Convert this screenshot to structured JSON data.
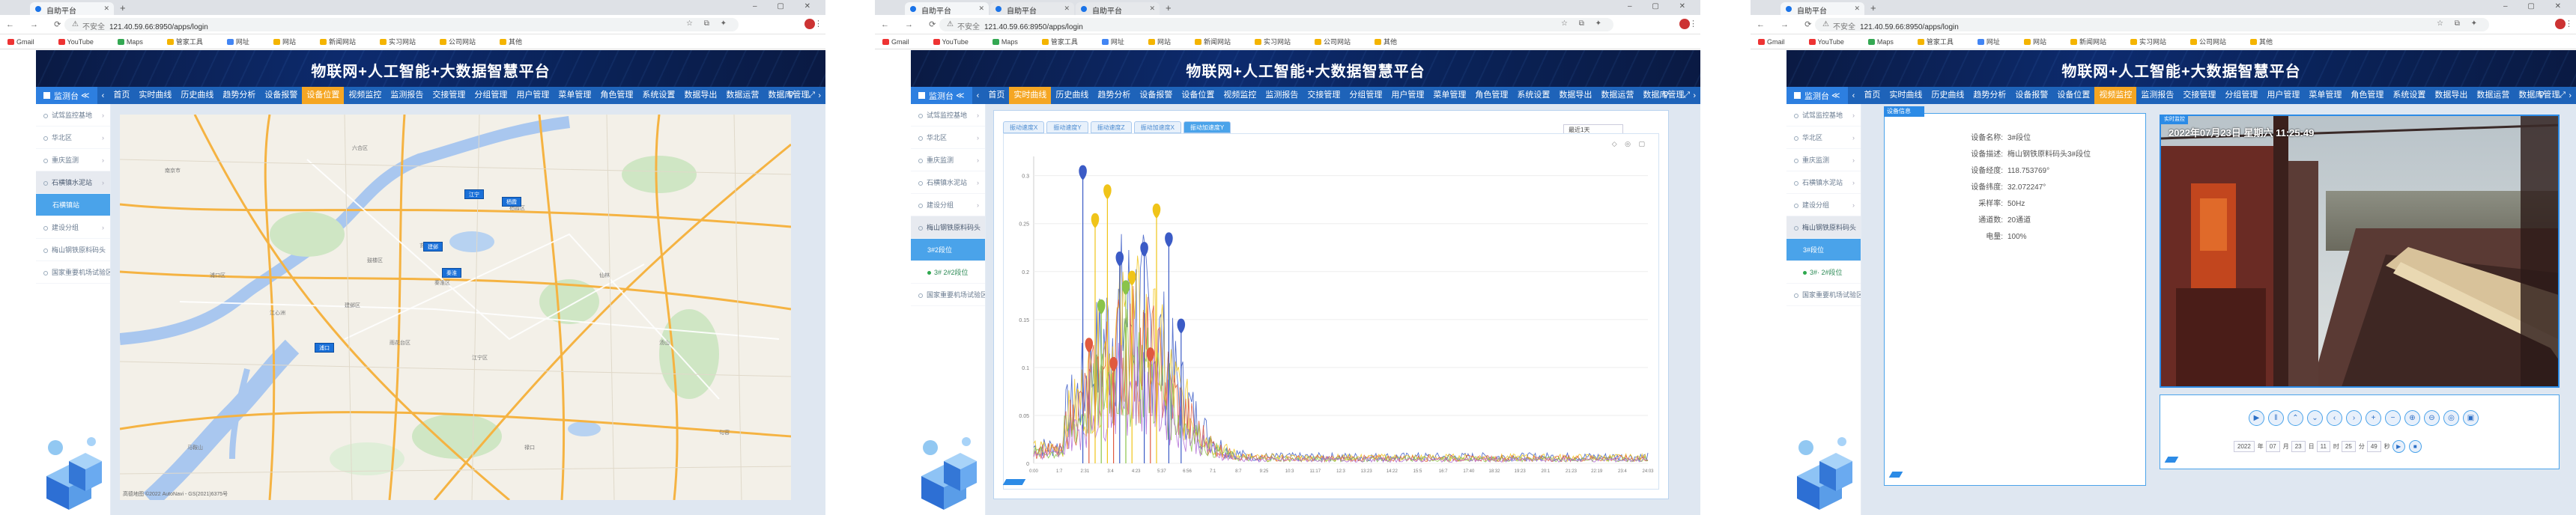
{
  "browser": {
    "tabs": [
      {
        "title": "自助平台"
      },
      {
        "title": "自助平台"
      },
      {
        "title": "自助平台"
      }
    ],
    "insecure_label": "不安全",
    "url": "121.40.59.66:8950/apps/login",
    "bookmarks": [
      "Gmail",
      "YouTube",
      "Maps",
      "管家工具",
      "网址",
      "网站",
      "新闻网站",
      "实习网站",
      "公司网站",
      "其他"
    ]
  },
  "app": {
    "title": "物联网+人工智能+大数据智慧平台",
    "home_label": "监测台",
    "menu": [
      "首页",
      "实时曲线",
      "历史曲线",
      "趋势分析",
      "设备报警",
      "设备位置",
      "视频监控",
      "监测报告",
      "交接管理",
      "分组管理",
      "用户管理",
      "菜单管理",
      "角色管理",
      "系统设置",
      "数据导出",
      "数据运营",
      "数据库管理"
    ]
  },
  "screens": [
    {
      "active_menu": "设备位置",
      "sidebar": [
        {
          "label": "试驾监控基地",
          "type": "item"
        },
        {
          "label": "华北区",
          "type": "item"
        },
        {
          "label": "重庆监测",
          "type": "item"
        },
        {
          "label": "石横镇水泥站",
          "type": "selected"
        },
        {
          "label": "石横镇站",
          "type": "blue"
        },
        {
          "label": "建设分组",
          "type": "item"
        },
        {
          "label": "梅山钢铁原料码头",
          "type": "item"
        },
        {
          "label": "国家重要机场试验区",
          "type": "item"
        }
      ],
      "map": {
        "labels": [
          "南京市",
          "六合区",
          "浦口区",
          "栖霞区",
          "江宁区",
          "玄武区",
          "秦淮区",
          "鼓楼区",
          "建邺区",
          "雨花台区",
          "仙林",
          "汤山",
          "江心洲",
          "禄口",
          "马鞍山",
          "句容"
        ],
        "markers": [
          "江宁",
          "栖霞",
          "建邺",
          "秦淮",
          "浦口"
        ],
        "footer": "高德地图 ©2022 AutoNavi - GS(2021)6375号"
      }
    },
    {
      "active_menu": "实时曲线",
      "sidebar": [
        {
          "label": "试驾监控基地",
          "type": "item"
        },
        {
          "label": "华北区",
          "type": "item"
        },
        {
          "label": "重庆监测",
          "type": "item"
        },
        {
          "label": "石横镇水泥站",
          "type": "item"
        },
        {
          "label": "建设分组",
          "type": "item"
        },
        {
          "label": "梅山钢铁原料码头",
          "type": "selected"
        },
        {
          "label": "3#2段位",
          "type": "blue"
        },
        {
          "label": "3# 2#2段位",
          "type": "green"
        },
        {
          "label": "国家重要机场试验区",
          "type": "item"
        }
      ],
      "chart_tabs": [
        "振动速度X",
        "振动速度Y",
        "振动速度Z",
        "振动加速度X",
        "振动加速度Y"
      ],
      "range_select": "最近1天",
      "tool_icons": "◇ ◎ ▢"
    },
    {
      "active_menu": "视频监控",
      "sidebar": [
        {
          "label": "试驾监控基地",
          "type": "item"
        },
        {
          "label": "华北区",
          "type": "item"
        },
        {
          "label": "重庆监测",
          "type": "item"
        },
        {
          "label": "石横镇水泥站",
          "type": "item"
        },
        {
          "label": "建设分组",
          "type": "item"
        },
        {
          "label": "梅山钢铁原料码头",
          "type": "selected"
        },
        {
          "label": "3#段位",
          "type": "blue"
        },
        {
          "label": "3#· 2#段位",
          "type": "green"
        },
        {
          "label": "国家重要机场试验区",
          "type": "item"
        }
      ],
      "info_tab": "设备信息",
      "device_info": [
        {
          "k": "设备名称:",
          "v": "3#段位"
        },
        {
          "k": "设备描述:",
          "v": "梅山钢铁原料码头3#段位"
        },
        {
          "k": "设备经度:",
          "v": "118.753769°"
        },
        {
          "k": "设备纬度:",
          "v": "32.072247°"
        },
        {
          "k": "采样率:",
          "v": "50Hz"
        },
        {
          "k": "通道数:",
          "v": "20通道"
        },
        {
          "k": "电量:",
          "v": "100%"
        }
      ],
      "video_tag": "实时监控",
      "osd": "2022年07月23日 星期六 11:25:49",
      "controls": [
        "▶",
        "‖",
        "⌃",
        "⌄",
        "‹",
        "›",
        "+",
        "−",
        "⊕",
        "⊖",
        "◎",
        "▣"
      ],
      "time_inputs": [
        "2022",
        "年",
        "07",
        "月",
        "23",
        "日",
        "11",
        "时",
        "25",
        "分",
        "49",
        "秒"
      ]
    }
  ],
  "chart_data": {
    "type": "line",
    "title": "",
    "xlabel": "",
    "ylabel": "",
    "x_ticks": [
      "0:00",
      "1:7",
      "2:31",
      "3:4",
      "4:23",
      "5:37",
      "6:56",
      "7:1",
      "8:7",
      "9:25",
      "10:3",
      "11:17",
      "12:3",
      "13:23",
      "14:22",
      "15:5",
      "16:7",
      "17:40",
      "18:32",
      "19:23",
      "20:1",
      "21:23",
      "22:19",
      "23:4",
      "24:03"
    ],
    "y_ticks": [
      "0",
      "0.05",
      "0.1",
      "0.15",
      "0.2",
      "0.25",
      "0.3"
    ],
    "ylim": [
      0,
      0.32
    ],
    "series": [
      {
        "color": "#3b5bc6"
      },
      {
        "color": "#f0c419"
      },
      {
        "color": "#e05a3f"
      },
      {
        "color": "#8ac44a"
      },
      {
        "color": "#b06ad6"
      }
    ],
    "peaks": [
      {
        "x": 0.08,
        "y": 0.3,
        "s": 0
      },
      {
        "x": 0.1,
        "y": 0.25,
        "s": 1
      },
      {
        "x": 0.12,
        "y": 0.28,
        "s": 1
      },
      {
        "x": 0.14,
        "y": 0.21,
        "s": 0
      },
      {
        "x": 0.16,
        "y": 0.19,
        "s": 1
      },
      {
        "x": 0.18,
        "y": 0.22,
        "s": 0
      },
      {
        "x": 0.2,
        "y": 0.26,
        "s": 1
      },
      {
        "x": 0.22,
        "y": 0.23,
        "s": 0
      },
      {
        "x": 0.15,
        "y": 0.18,
        "s": 3
      },
      {
        "x": 0.09,
        "y": 0.12,
        "s": 2
      },
      {
        "x": 0.13,
        "y": 0.1,
        "s": 2
      },
      {
        "x": 0.19,
        "y": 0.11,
        "s": 2
      },
      {
        "x": 0.24,
        "y": 0.14,
        "s": 0
      },
      {
        "x": 0.11,
        "y": 0.16,
        "s": 3
      }
    ]
  }
}
